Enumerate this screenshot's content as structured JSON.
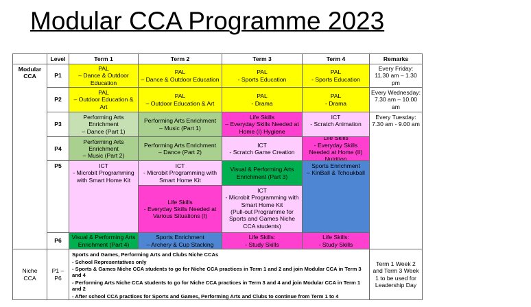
{
  "header": {
    "title": "Modular CCA Programme 2023"
  },
  "table": {
    "columns": [
      "Level",
      "Term 1",
      "Term 2",
      "Term 3",
      "Term 4",
      "Remarks"
    ],
    "cells": [
      {
        "lines": [
          "Modular",
          "CCA"
        ]
      },
      {
        "lines": [
          "P1"
        ]
      },
      {
        "lines": [
          "PAL",
          "– Dance & Outdoor Education"
        ]
      },
      {
        "lines": [
          "PAL",
          "– Dance & Outdoor Education"
        ]
      },
      {
        "lines": [
          "PAL",
          "- Sports Education"
        ]
      },
      {
        "lines": [
          "PAL",
          "- Sports Education"
        ]
      },
      {
        "lines": [
          "Every Friday:",
          "11.30 am – 1.30 pm"
        ]
      },
      {
        "lines": [
          "P2"
        ]
      },
      {
        "lines": [
          "PAL",
          "– Outdoor Education & Art"
        ]
      },
      {
        "lines": [
          "PAL",
          "– Outdoor Education & Art"
        ]
      },
      {
        "lines": [
          "PAL",
          "- Drama"
        ]
      },
      {
        "lines": [
          "PAL",
          "- Drama"
        ]
      },
      {
        "lines": [
          "Every Wednesday:",
          "7.30 am – 10.00 am"
        ]
      },
      {
        "lines": [
          "P3"
        ]
      },
      {
        "lines": [
          "Performing Arts Enrichment",
          "– Dance (Part 1)"
        ]
      },
      {
        "lines": [
          "Performing Arts Enrichment",
          "– Music (Part 1)"
        ]
      },
      {
        "lines": [
          "Life Skills",
          "– Everyday Skills Needed at Home (I) Hygiene"
        ]
      },
      {
        "lines": [
          "ICT",
          "- Scratch Animation"
        ]
      },
      {
        "lines": [
          "Every Tuesday:",
          "7.30 am - 9.00 am"
        ]
      },
      {
        "lines": [
          "P4"
        ]
      },
      {
        "lines": [
          "Performing Arts Enrichment",
          "– Music (Part 2)"
        ]
      },
      {
        "lines": [
          "Performing Arts Enrichment",
          "– Dance (Part 2)"
        ]
      },
      {
        "lines": [
          "ICT",
          "- Scratch Game Creation"
        ]
      },
      {
        "lines": [
          "Life Skills",
          "- Everyday Skills Needed at Home (II) Nutrition"
        ]
      },
      {
        "lines": [
          "P5"
        ]
      },
      {
        "lines": [
          "ICT",
          "- Microbit Programming with Smart Home Kit"
        ]
      },
      {
        "lines": [
          "ICT",
          "- Microbit Programming with Smart Home Kit"
        ]
      },
      {
        "lines": [
          "Life Skills",
          "- Everyday Skills Needed at Various Situations (I)"
        ]
      },
      {
        "lines": [
          "Visual & Performing Arts Enrichment (Part 3)"
        ]
      },
      {
        "lines": [
          "ICT",
          "- Microbit Programming with Smart Home Kit",
          "(Pull-out Programme for Sports and Games Niche CCA students)"
        ]
      },
      {
        "lines": [
          "Sports Enrichment",
          "– KinBall & Tchoukball"
        ]
      },
      {
        "lines": [
          "P6"
        ]
      },
      {
        "lines": [
          "Visual & Performing Arts Enrichment (Part 4)"
        ]
      },
      {
        "lines": [
          "Sports Enrichment",
          "– Archery & Cup Stacking"
        ]
      },
      {
        "lines": [
          "Life Skills:",
          "- Study Skills"
        ]
      },
      {
        "lines": [
          "Life Skills:",
          "- Study Skills"
        ]
      },
      {
        "lines": [
          "Niche",
          "CCA"
        ]
      },
      {
        "lines": [
          "P1 – P6"
        ]
      },
      {
        "lines": [
          "Sports and Games, Performing Arts and Clubs Niche CCAs",
          "- School Representatives only",
          "- Sports & Games Niche CCA students to go for Niche CCA practices in Term 1 and 2 and join Modular CCA in Term 3 and 4",
          "- Performing Arts Niche CCA students to go for Niche CCA practices in Term 3 and 4 and join Modular CCA in Term 1 and 2",
          "- After school CCA practices for Sports and Games, Performing Arts and Clubs to continue from Term 1 to 4"
        ]
      },
      {
        "lines": [
          "Term 1 Week 2 and Term 3 Week 1 to be used for Leadership Day"
        ]
      }
    ]
  }
}
